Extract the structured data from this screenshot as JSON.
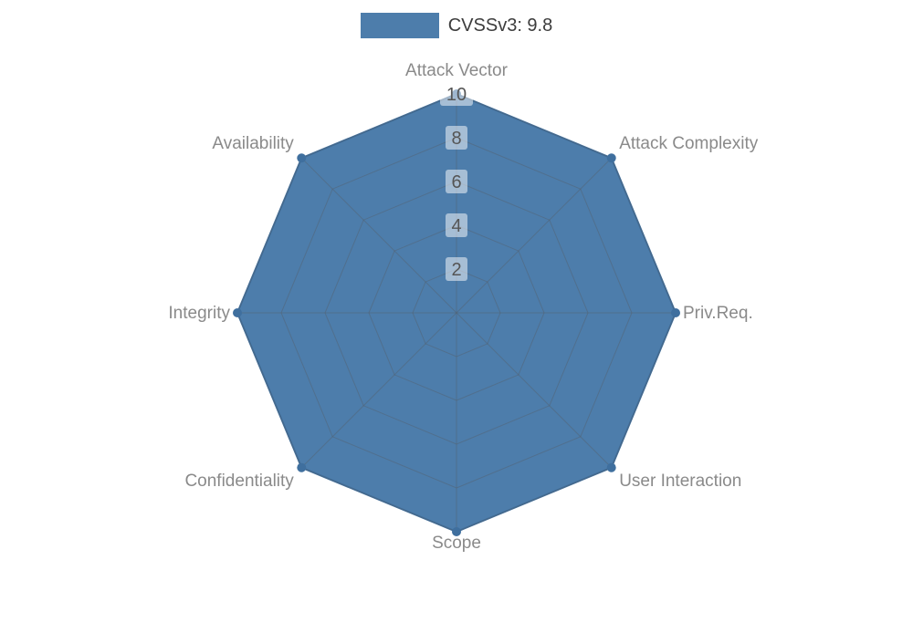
{
  "chart_data": {
    "type": "radar",
    "title": "",
    "series": [
      {
        "name": "CVSSv3: 9.8",
        "values": [
          10,
          10,
          10,
          10,
          10,
          10,
          10,
          10
        ]
      }
    ],
    "categories": [
      "Attack Vector",
      "Attack Complexity",
      "Priv.Req.",
      "User Interaction",
      "Scope",
      "Confidentiality",
      "Integrity",
      "Availability"
    ],
    "radial_ticks": [
      2,
      4,
      6,
      8,
      10
    ],
    "rlim": [
      0,
      10
    ],
    "grid": true,
    "legend_position": "top",
    "colors": {
      "series_fill": "#4d7dab",
      "series_stroke": "#3f6f9e",
      "grid_line": "#55606b",
      "axis_label": "#8a8a8a",
      "tick_label": "#555555",
      "tick_label_bg": "#ffffff",
      "legend_text": "#3c3c3c",
      "background": "#ffffff"
    }
  }
}
